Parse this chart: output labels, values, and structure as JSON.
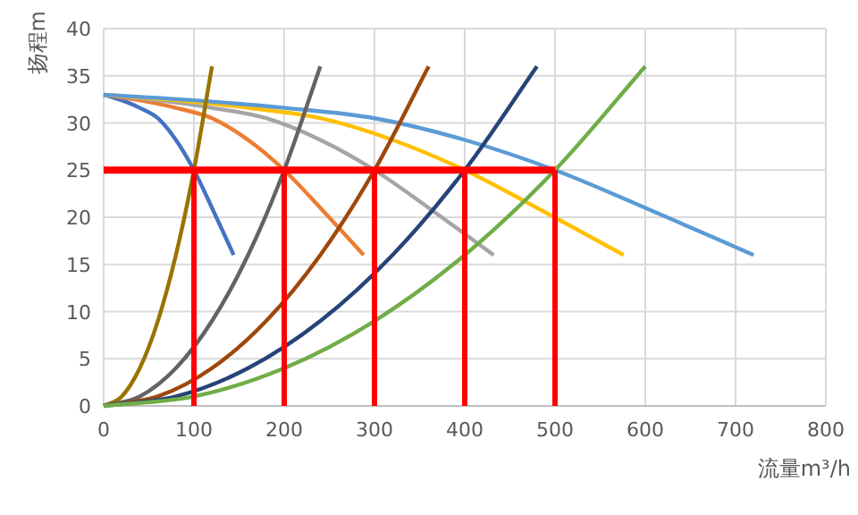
{
  "chart_data": {
    "type": "line",
    "xlabel": "流量m³/h",
    "ylabel": "扬程m",
    "xlim": [
      0,
      800
    ],
    "xticks": [
      0,
      100,
      200,
      300,
      400,
      500,
      600,
      700,
      800
    ],
    "ylim": [
      0,
      40
    ],
    "yticks": [
      0,
      5,
      10,
      15,
      20,
      25,
      30,
      35,
      40
    ],
    "grid": true,
    "marker": "none",
    "line_style": "solid",
    "series": [
      {
        "color": "#4472c4",
        "x": [
          0,
          20,
          40,
          60,
          80,
          100,
          120,
          144
        ],
        "values": [
          33,
          32.4,
          31.6,
          30.5,
          28.2,
          25,
          21,
          16
        ]
      },
      {
        "color": "#ed7d31",
        "x": [
          0,
          40,
          80,
          120,
          160,
          200,
          240,
          288
        ],
        "values": [
          33,
          32.4,
          31.6,
          30.5,
          28.2,
          25,
          21,
          16
        ]
      },
      {
        "color": "#a5a5a5",
        "x": [
          0,
          60,
          120,
          180,
          240,
          300,
          360,
          432
        ],
        "values": [
          33,
          32.4,
          31.6,
          30.5,
          28.2,
          25,
          21,
          16
        ]
      },
      {
        "color": "#ffc000",
        "x": [
          0,
          80,
          160,
          240,
          320,
          400,
          480,
          576
        ],
        "values": [
          33,
          32.4,
          31.6,
          30.5,
          28.2,
          25,
          21,
          16
        ]
      },
      {
        "color": "#5b9bd5",
        "x": [
          0,
          100,
          200,
          300,
          400,
          500,
          600,
          720
        ],
        "values": [
          33,
          32.4,
          31.6,
          30.5,
          28.2,
          25,
          21,
          16
        ]
      },
      {
        "color": "#997300",
        "x": [
          0,
          20,
          40,
          60,
          80,
          100,
          120
        ],
        "values": [
          0,
          1,
          4,
          9,
          16,
          25,
          36
        ]
      },
      {
        "color": "#636363",
        "x": [
          0,
          40,
          80,
          120,
          160,
          200,
          240
        ],
        "values": [
          0,
          1,
          4,
          9,
          16,
          25,
          36
        ]
      },
      {
        "color": "#9e480e",
        "x": [
          0,
          60,
          120,
          180,
          240,
          300,
          360
        ],
        "values": [
          0,
          1,
          4,
          9,
          16,
          25,
          36
        ]
      },
      {
        "color": "#264478",
        "x": [
          0,
          80,
          160,
          240,
          320,
          400,
          480
        ],
        "values": [
          0,
          1,
          4,
          9,
          16,
          25,
          36
        ]
      },
      {
        "color": "#70ad47",
        "x": [
          0,
          100,
          200,
          300,
          400,
          500,
          600
        ],
        "values": [
          0,
          1,
          4,
          9,
          16,
          25,
          36
        ]
      },
      {
        "color": "#ff0000",
        "x": [
          0,
          500
        ],
        "values": [
          25,
          25
        ]
      },
      {
        "color": "#ff0000",
        "x": [
          100,
          100
        ],
        "values": [
          0,
          25
        ]
      },
      {
        "color": "#ff0000",
        "x": [
          200,
          200
        ],
        "values": [
          0,
          25
        ]
      },
      {
        "color": "#ff0000",
        "x": [
          300,
          300
        ],
        "values": [
          0,
          25
        ]
      },
      {
        "color": "#ff0000",
        "x": [
          400,
          400
        ],
        "values": [
          0,
          25
        ]
      },
      {
        "color": "#ff0000",
        "x": [
          500,
          500
        ],
        "values": [
          0,
          25
        ]
      }
    ]
  }
}
